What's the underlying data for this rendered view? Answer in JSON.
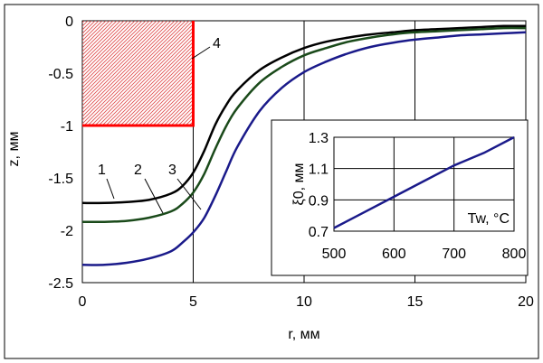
{
  "chart_data": [
    {
      "type": "line",
      "title": "",
      "xlabel": "r, мм",
      "ylabel": "z, мм",
      "xlim": [
        0,
        20
      ],
      "ylim": [
        -2.5,
        0
      ],
      "xticks": [
        "0",
        "5",
        "10",
        "15",
        "20"
      ],
      "yticks": [
        "0",
        "-0.5",
        "-1",
        "-1.5",
        "-2",
        "-2.5"
      ],
      "grid": "vertical gridlines at x ticks",
      "series": [
        {
          "name": "1",
          "color": "#000000",
          "x": [
            0,
            1,
            2,
            3,
            4,
            4.5,
            5,
            5.5,
            6,
            6.5,
            7,
            8,
            9,
            10,
            11,
            12,
            13,
            14,
            15,
            16,
            17,
            18,
            19,
            20
          ],
          "y": [
            -1.74,
            -1.74,
            -1.73,
            -1.71,
            -1.65,
            -1.58,
            -1.45,
            -1.24,
            -0.99,
            -0.8,
            -0.66,
            -0.47,
            -0.35,
            -0.26,
            -0.2,
            -0.16,
            -0.13,
            -0.11,
            -0.09,
            -0.08,
            -0.07,
            -0.06,
            -0.05,
            -0.05
          ]
        },
        {
          "name": "2",
          "color": "#1a4a1a",
          "x": [
            0,
            1,
            2,
            3,
            4,
            4.5,
            5,
            5.5,
            6,
            6.5,
            7,
            8,
            9,
            10,
            11,
            12,
            13,
            14,
            15,
            16,
            17,
            18,
            19,
            20
          ],
          "y": [
            -1.92,
            -1.92,
            -1.91,
            -1.88,
            -1.82,
            -1.75,
            -1.64,
            -1.46,
            -1.22,
            -1.0,
            -0.83,
            -0.59,
            -0.44,
            -0.33,
            -0.26,
            -0.2,
            -0.16,
            -0.13,
            -0.11,
            -0.1,
            -0.09,
            -0.08,
            -0.07,
            -0.07
          ]
        },
        {
          "name": "3",
          "color": "#1a1a8a",
          "x": [
            0,
            1,
            2,
            3,
            4,
            4.5,
            5,
            5.5,
            6,
            6.5,
            7,
            8,
            9,
            10,
            11,
            12,
            13,
            14,
            15,
            16,
            17,
            18,
            19,
            20
          ],
          "y": [
            -2.33,
            -2.33,
            -2.31,
            -2.27,
            -2.2,
            -2.12,
            -2.02,
            -1.88,
            -1.67,
            -1.43,
            -1.2,
            -0.86,
            -0.64,
            -0.49,
            -0.39,
            -0.31,
            -0.25,
            -0.21,
            -0.18,
            -0.16,
            -0.14,
            -0.13,
            -0.12,
            -0.11
          ]
        }
      ],
      "annotations": [
        {
          "label": "1",
          "points_to": "series 1"
        },
        {
          "label": "2",
          "points_to": "series 2"
        },
        {
          "label": "3",
          "points_to": "series 3"
        },
        {
          "label": "4",
          "points_to": "hatched rectangle r 0–5 мм, z 0 to −1 мм"
        }
      ],
      "region": {
        "x": [
          0,
          5
        ],
        "y": [
          -1,
          0
        ],
        "fill": "red diagonal hatching",
        "edge_color": "#ff0000"
      }
    },
    {
      "type": "line",
      "title": "",
      "xlabel": "",
      "ylabel": "ξ0, мм",
      "inner_label": "Tw, °C",
      "xlim": [
        500,
        800
      ],
      "ylim": [
        0.7,
        1.3
      ],
      "xticks": [
        "500",
        "600",
        "700",
        "800"
      ],
      "yticks": [
        "0.7",
        "0.9",
        "1.1",
        "1.3"
      ],
      "grid": "full grid",
      "series": [
        {
          "name": "",
          "color": "#1a1a8a",
          "x": [
            500,
            550,
            600,
            650,
            700,
            750,
            800
          ],
          "y": [
            0.72,
            0.82,
            0.92,
            1.02,
            1.12,
            1.2,
            1.3
          ]
        }
      ]
    }
  ]
}
